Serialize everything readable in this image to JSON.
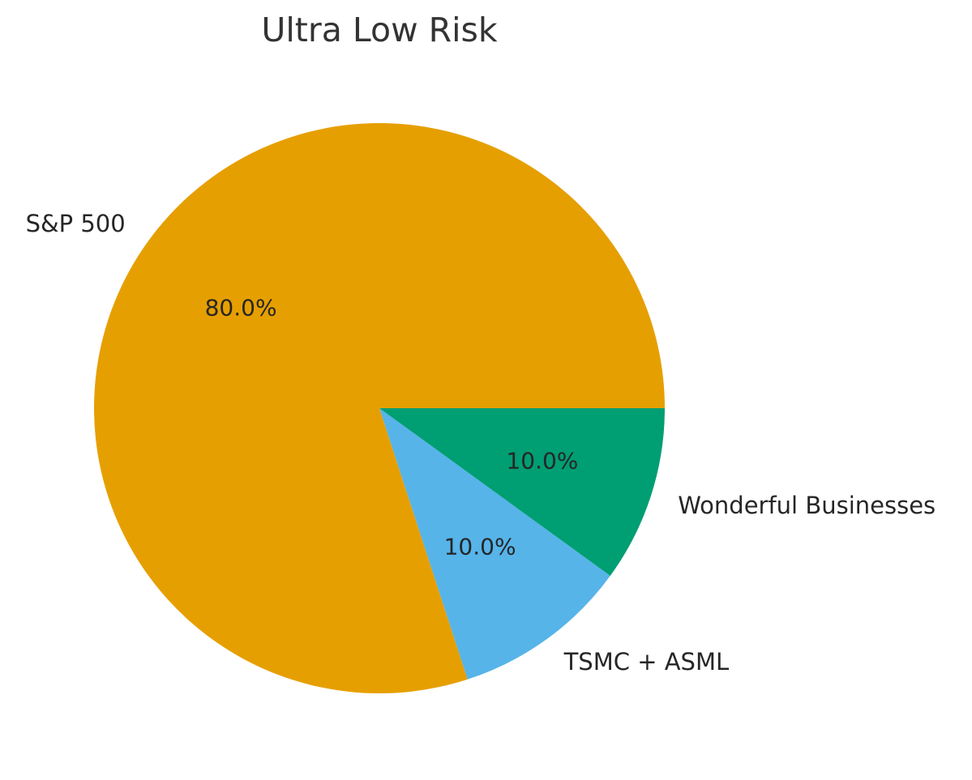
{
  "chart_data": {
    "type": "pie",
    "title": "Ultra Low Risk",
    "categories": [
      "S&P 500",
      "TSMC + ASML",
      "Wonderful Businesses"
    ],
    "values": [
      80.0,
      10.0,
      10.0
    ],
    "slices": [
      {
        "label": "S&P 500",
        "value": 80.0,
        "pct_label": "80.0%",
        "color": "#E69F00"
      },
      {
        "label": "TSMC + ASML",
        "value": 10.0,
        "pct_label": "10.0%",
        "color": "#56B4E9"
      },
      {
        "label": "Wonderful Businesses",
        "value": 10.0,
        "pct_label": "10.0%",
        "color": "#009E73"
      }
    ],
    "start_angle": 0,
    "direction": "counterclockwise",
    "label_distance": 1.1,
    "pct_distance": 0.6,
    "legend": "none",
    "background_color": "#ffffff",
    "title_color": "#333333",
    "text_color": "#262626"
  }
}
